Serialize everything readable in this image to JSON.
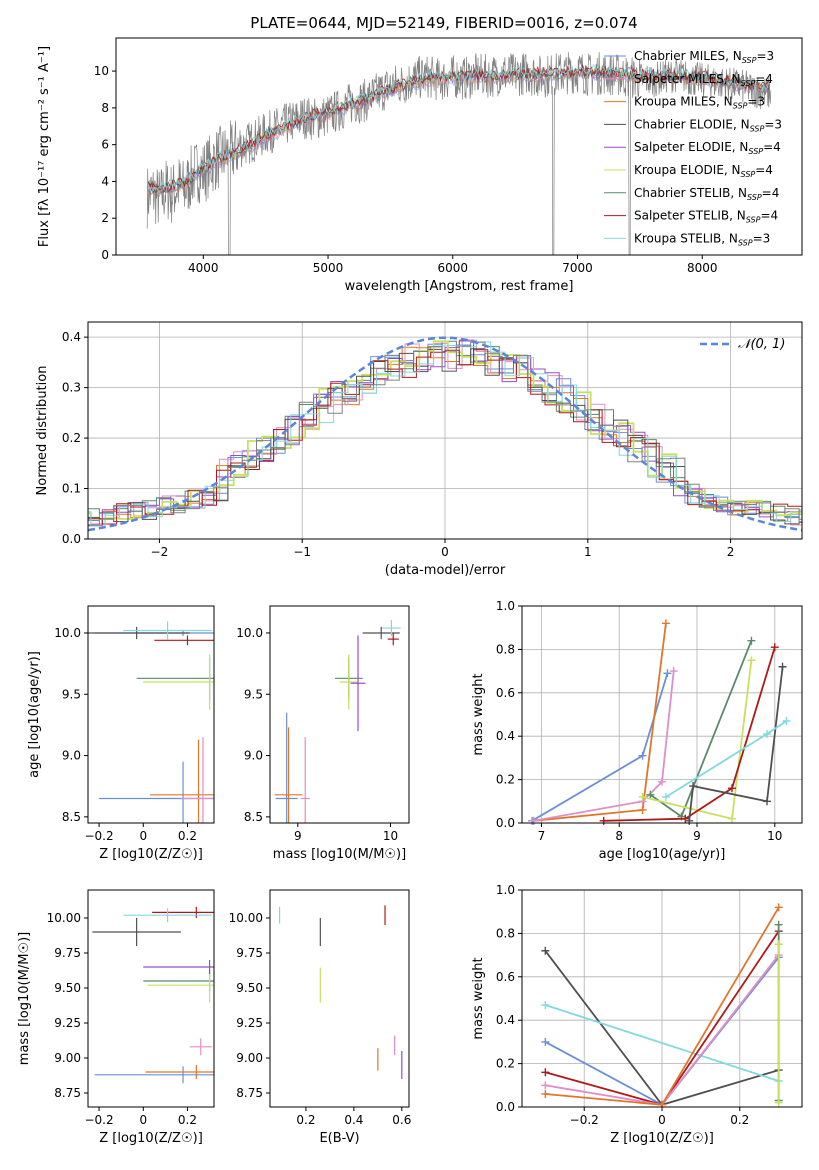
{
  "title": "PLATE=0644, MJD=52149, FIBERID=0016, z=0.074",
  "colors": {
    "grey": "#808080",
    "blue": "#6a8fd8",
    "orange": "#e0762a",
    "pink": "#e08ec8",
    "green": "#5a8a6a",
    "purple": "#9a4cc8",
    "yellowgreen": "#c8e060",
    "dark": "#505050",
    "red": "#b01818",
    "cyan": "#80d8e0"
  },
  "chart_data": [
    {
      "id": "spectrum",
      "type": "line",
      "title": "PLATE=0644, MJD=52149, FIBERID=0016, z=0.074",
      "xlabel": "wavelength [Angstrom, rest frame]",
      "ylabel": "Flux [fλ 10⁻¹⁷ erg cm⁻² s⁻¹ A⁻¹]",
      "xlim": [
        3300,
        8800
      ],
      "ylim": [
        0,
        11.8
      ],
      "xticks": [
        4000,
        5000,
        6000,
        7000,
        8000
      ],
      "yticks": [
        0,
        2,
        4,
        6,
        8,
        10
      ],
      "legend_position": "upper-right",
      "legend": [
        "Chabrier MILES, N_SSP=3",
        "Salpeter MILES, N_SSP=4",
        "Kroupa MILES, N_SSP=3",
        "Chabrier ELODIE, N_SSP=3",
        "Salpeter ELODIE, N_SSP=4",
        "Kroupa ELODIE, N_SSP=4",
        "Chabrier STELIB, N_SSP=4",
        "Salpeter STELIB, N_SSP=4",
        "Kroupa STELIB, N_SSP=3"
      ],
      "data_x": [
        3550,
        3600,
        3650,
        3700,
        3750,
        3800,
        3850,
        3900,
        3950,
        4000,
        4100,
        4200,
        4300,
        4400,
        4500,
        4600,
        4700,
        4800,
        4900,
        5000,
        5100,
        5200,
        5300,
        5400,
        5500,
        5600,
        5700,
        5800,
        5900,
        6000,
        6100,
        6200,
        6300,
        6400,
        6500,
        6600,
        6700,
        6800,
        6900,
        7000,
        7100,
        7200,
        7300,
        7400,
        7500,
        7600,
        7700,
        7800,
        7900,
        8000,
        8100,
        8200,
        8300,
        8400,
        8500
      ],
      "data_y": [
        3.2,
        3.4,
        3.0,
        3.6,
        3.3,
        3.8,
        3.5,
        4.2,
        4.6,
        4.5,
        5.2,
        5.5,
        5.9,
        6.2,
        6.6,
        6.9,
        7.2,
        7.5,
        7.4,
        7.6,
        7.9,
        8.3,
        8.4,
        8.8,
        9.2,
        9.3,
        9.6,
        9.7,
        9.5,
        9.7,
        9.6,
        9.8,
        9.7,
        9.9,
        9.8,
        9.9,
        9.7,
        9.8,
        9.9,
        10.0,
        9.8,
        9.9,
        9.8,
        9.7,
        9.6,
        9.5,
        9.7,
        9.8,
        9.6,
        9.5,
        9.4,
        9.3,
        9.2,
        9.0,
        8.8
      ],
      "model_x": [
        3550,
        3650,
        3750,
        3850,
        3950,
        4050,
        4200,
        4350,
        4500,
        4650,
        4800,
        4950,
        5100,
        5250,
        5400,
        5550,
        5700,
        5850,
        6000,
        6200,
        6400,
        6600,
        6800,
        7000,
        7200,
        7400,
        7600,
        7800,
        8000,
        8200,
        8400,
        8600
      ],
      "model_y": [
        3.6,
        3.5,
        3.7,
        3.9,
        4.4,
        4.9,
        5.4,
        5.8,
        6.4,
        6.9,
        7.4,
        7.6,
        8.0,
        8.3,
        8.7,
        9.1,
        9.4,
        9.6,
        9.6,
        9.7,
        9.7,
        9.8,
        9.8,
        9.9,
        9.9,
        9.8,
        9.7,
        9.7,
        9.6,
        9.4,
        9.2,
        9.0
      ]
    },
    {
      "id": "residuals",
      "type": "area",
      "xlabel": "(data-model)/error",
      "ylabel": "Normed distribution",
      "xlim": [
        -2.5,
        2.5
      ],
      "ylim": [
        0,
        0.43
      ],
      "xticks": [
        -2,
        -1,
        0,
        1,
        2
      ],
      "yticks": [
        0.0,
        0.1,
        0.2,
        0.3,
        0.4
      ],
      "legend": [
        "𝒩(0, 1)"
      ],
      "legend_position": "upper-right"
    },
    {
      "id": "age-vs-Z",
      "type": "scatter",
      "xlabel": "Z [log10(Z/Z☉)]",
      "ylabel": "age  [log10(age/yr)]",
      "xlim": [
        -0.25,
        0.32
      ],
      "ylim": [
        8.45,
        10.22
      ],
      "xticks": [
        -0.2,
        0.0,
        0.2
      ],
      "yticks": [
        8.5,
        9.0,
        9.5,
        10.0
      ],
      "points": [
        {
          "x": 0.18,
          "y": 10.0,
          "xerr": 0.4,
          "yerr": 0.05,
          "c": "blue"
        },
        {
          "x": 0.18,
          "y": 8.65,
          "xerr": 0.38,
          "yerr": 0.6,
          "c": "blue"
        },
        {
          "x": 0.2,
          "y": 9.94,
          "xerr": 0.15,
          "yerr": 0.08,
          "c": "red"
        },
        {
          "x": 0.25,
          "y": 8.68,
          "xerr": 0.22,
          "yerr": 0.9,
          "c": "orange"
        },
        {
          "x": 0.27,
          "y": 8.65,
          "xerr": 0.1,
          "yerr": 1.0,
          "c": "pink"
        },
        {
          "x": 0.3,
          "y": 9.63,
          "xerr": 0.33,
          "yerr": 0.35,
          "c": "green"
        },
        {
          "x": 0.3,
          "y": 9.6,
          "xerr": 0.3,
          "yerr": 0.45,
          "c": "yellowgreen"
        },
        {
          "x": -0.03,
          "y": 10.0,
          "xerr": 0.24,
          "yerr": 0.1,
          "c": "dark"
        },
        {
          "x": 0.11,
          "y": 10.02,
          "xerr": 0.2,
          "yerr": 0.15,
          "c": "cyan"
        }
      ]
    },
    {
      "id": "age-vs-mass",
      "type": "scatter",
      "xlabel": "mass [log10(M/M☉)]",
      "ylabel": "",
      "xlim": [
        8.7,
        10.2
      ],
      "ylim": [
        8.45,
        10.22
      ],
      "xticks": [
        9,
        10
      ],
      "yticks": [
        8.5,
        9.0,
        9.5,
        10.0
      ],
      "points": [
        {
          "x": 8.88,
          "y": 8.65,
          "xerr": 0.12,
          "yerr": 1.4,
          "c": "blue"
        },
        {
          "x": 8.9,
          "y": 8.68,
          "xerr": 0.15,
          "yerr": 1.1,
          "c": "orange"
        },
        {
          "x": 9.08,
          "y": 8.65,
          "xerr": 0.05,
          "yerr": 1.0,
          "c": "pink"
        },
        {
          "x": 9.55,
          "y": 9.63,
          "xerr": 0.15,
          "yerr": 0.35,
          "c": "green"
        },
        {
          "x": 9.55,
          "y": 9.6,
          "xerr": 0.1,
          "yerr": 0.45,
          "c": "yellowgreen"
        },
        {
          "x": 9.65,
          "y": 9.59,
          "xerr": 0.08,
          "yerr": 0.78,
          "c": "purple"
        },
        {
          "x": 9.9,
          "y": 10.0,
          "xerr": 0.2,
          "yerr": 0.1,
          "c": "dark"
        },
        {
          "x": 10.03,
          "y": 9.95,
          "xerr": 0.06,
          "yerr": 0.1,
          "c": "red"
        },
        {
          "x": 10.01,
          "y": 10.04,
          "xerr": 0.1,
          "yerr": 0.13,
          "c": "cyan"
        }
      ]
    },
    {
      "id": "massweight-vs-age",
      "type": "line",
      "xlabel": "age  [log10(age/yr)]",
      "ylabel": "mass weight",
      "xlim": [
        6.75,
        10.35
      ],
      "ylim": [
        0,
        1.0
      ],
      "xticks": [
        7,
        8,
        9,
        10
      ],
      "yticks": [
        0.0,
        0.2,
        0.4,
        0.6,
        0.8,
        1.0
      ],
      "series": [
        {
          "c": "blue",
          "x": [
            6.88,
            8.3,
            8.62
          ],
          "y": [
            0.01,
            0.31,
            0.69
          ]
        },
        {
          "c": "orange",
          "x": [
            6.9,
            8.3,
            8.6
          ],
          "y": [
            0.01,
            0.06,
            0.92
          ]
        },
        {
          "c": "pink",
          "x": [
            6.9,
            8.3,
            8.55,
            8.7
          ],
          "y": [
            0.01,
            0.1,
            0.19,
            0.7
          ]
        },
        {
          "c": "green",
          "x": [
            8.4,
            8.8,
            9.7
          ],
          "y": [
            0.13,
            0.03,
            0.84
          ]
        },
        {
          "c": "yellowgreen",
          "x": [
            8.3,
            9.45,
            9.7
          ],
          "y": [
            0.12,
            0.02,
            0.75
          ]
        },
        {
          "c": "red",
          "x": [
            7.8,
            8.85,
            9.45,
            10.0
          ],
          "y": [
            0.01,
            0.02,
            0.16,
            0.81
          ]
        },
        {
          "c": "dark",
          "x": [
            8.9,
            8.95,
            9.9,
            10.1
          ],
          "y": [
            0.01,
            0.17,
            0.1,
            0.72
          ]
        },
        {
          "c": "cyan",
          "x": [
            8.6,
            9.9,
            10.15
          ],
          "y": [
            0.12,
            0.41,
            0.47
          ]
        }
      ]
    },
    {
      "id": "mass-vs-Z",
      "type": "scatter",
      "xlabel": "Z [log10(Z/Z☉)]",
      "ylabel": "mass [log10(M/M☉)]",
      "xlim": [
        -0.25,
        0.32
      ],
      "ylim": [
        8.65,
        10.2
      ],
      "xticks": [
        -0.2,
        0.0,
        0.2
      ],
      "yticks": [
        8.75,
        9.0,
        9.25,
        9.5,
        9.75,
        10.0
      ],
      "points": [
        {
          "x": 0.18,
          "y": 8.88,
          "xerr": 0.4,
          "yerr": 0.12,
          "c": "blue"
        },
        {
          "x": 0.24,
          "y": 8.9,
          "xerr": 0.23,
          "yerr": 0.1,
          "c": "orange"
        },
        {
          "x": 0.26,
          "y": 9.08,
          "xerr": 0.05,
          "yerr": 0.12,
          "c": "pink"
        },
        {
          "x": 0.3,
          "y": 9.55,
          "xerr": 0.3,
          "yerr": 0.15,
          "c": "green"
        },
        {
          "x": 0.3,
          "y": 9.52,
          "xerr": 0.28,
          "yerr": 0.25,
          "c": "yellowgreen"
        },
        {
          "x": 0.3,
          "y": 9.65,
          "xerr": 0.3,
          "yerr": 0.1,
          "c": "purple"
        },
        {
          "x": -0.03,
          "y": 9.9,
          "xerr": 0.2,
          "yerr": 0.2,
          "c": "dark"
        },
        {
          "x": 0.24,
          "y": 10.04,
          "xerr": 0.2,
          "yerr": 0.08,
          "c": "red"
        },
        {
          "x": 0.11,
          "y": 10.02,
          "xerr": 0.2,
          "yerr": 0.1,
          "c": "cyan"
        }
      ]
    },
    {
      "id": "mass-vs-ebv",
      "type": "scatter",
      "xlabel": "E(B-V)",
      "ylabel": "",
      "xlim": [
        0.05,
        0.63
      ],
      "ylim": [
        8.65,
        10.2
      ],
      "xticks": [
        0.2,
        0.4,
        0.6
      ],
      "yticks": [
        8.75,
        9.0,
        9.25,
        9.5,
        9.75,
        10.0
      ],
      "points": [
        {
          "x": 0.09,
          "y": 10.02,
          "xerr": 0,
          "yerr": 0.12,
          "c": "cyan"
        },
        {
          "x": 0.26,
          "y": 9.9,
          "xerr": 0,
          "yerr": 0.2,
          "c": "dark"
        },
        {
          "x": 0.26,
          "y": 9.52,
          "xerr": 0,
          "yerr": 0.25,
          "c": "yellowgreen"
        },
        {
          "x": 0.53,
          "y": 10.02,
          "xerr": 0,
          "yerr": 0.14,
          "c": "red"
        },
        {
          "x": 0.5,
          "y": 8.99,
          "xerr": 0,
          "yerr": 0.16,
          "c": "orange"
        },
        {
          "x": 0.57,
          "y": 9.09,
          "xerr": 0,
          "yerr": 0.14,
          "c": "pink"
        },
        {
          "x": 0.6,
          "y": 8.95,
          "xerr": 0,
          "yerr": 0.2,
          "c": "purple"
        }
      ]
    },
    {
      "id": "massweight-vs-Z",
      "type": "line",
      "xlabel": "Z [log10(Z/Z☉)]",
      "ylabel": "mass weight",
      "xlim": [
        -0.36,
        0.36
      ],
      "ylim": [
        0,
        1.0
      ],
      "xticks": [
        -0.2,
        0.0,
        0.2
      ],
      "yticks": [
        0.0,
        0.2,
        0.4,
        0.6,
        0.8,
        1.0
      ],
      "series": [
        {
          "c": "dark",
          "x": [
            -0.3,
            0.0,
            0.3
          ],
          "y": [
            0.72,
            0.01,
            0.17
          ]
        },
        {
          "c": "cyan",
          "x": [
            -0.3,
            0.3
          ],
          "y": [
            0.47,
            0.12
          ]
        },
        {
          "c": "blue",
          "x": [
            -0.3,
            0.0,
            0.3
          ],
          "y": [
            0.3,
            0.01,
            0.69
          ]
        },
        {
          "c": "red",
          "x": [
            -0.3,
            0.0,
            0.3
          ],
          "y": [
            0.16,
            0.01,
            0.81
          ]
        },
        {
          "c": "pink",
          "x": [
            -0.3,
            0.0,
            0.3
          ],
          "y": [
            0.1,
            0.01,
            0.7
          ]
        },
        {
          "c": "orange",
          "x": [
            -0.3,
            0.0,
            0.3
          ],
          "y": [
            0.06,
            0.01,
            0.92
          ]
        },
        {
          "c": "green",
          "x": [
            0.3,
            0.3
          ],
          "y": [
            0.84,
            0.03
          ]
        },
        {
          "c": "yellowgreen",
          "x": [
            0.3,
            0.3
          ],
          "y": [
            0.75,
            0.02
          ]
        }
      ]
    }
  ]
}
